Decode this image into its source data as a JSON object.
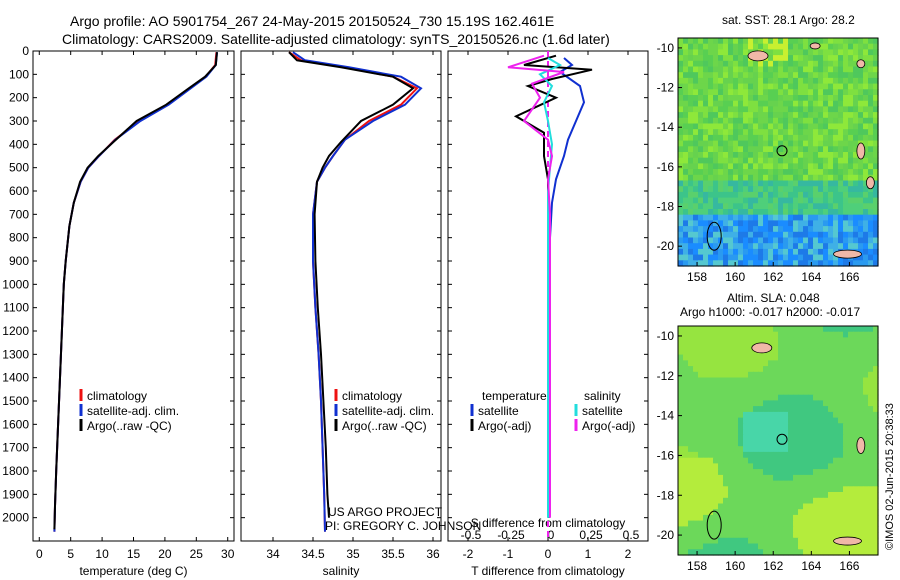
{
  "titles": {
    "line1": "Argo profile: AO 5901754_267 24-May-2015 20150524_730 15.19S 162.461E",
    "line2": "Climatology: CARS2009. Satellite-adjusted climatology: synTS_20150526.nc (1.6d later)",
    "sst": "sat. SST: 28.1  Argo: 28.2",
    "sla1": "Altim. SLA: 0.048",
    "sla2": "Argo h1000: -0.017 h2000: -0.017"
  },
  "credits": {
    "project": "US ARGO PROJECT",
    "pi": "PI: GREGORY C. JOHNSON",
    "imos": "©IMOS 02-Jun-2015 20:38:33"
  },
  "colors": {
    "climatology": "#ee1111",
    "satellite": "#1030d0",
    "argo": "#000000",
    "sal_satellite": "#22dddd",
    "sal_argo": "#ee22ee",
    "land": "#f0b8a8"
  },
  "chart_data": [
    {
      "type": "line",
      "panel": "temperature",
      "xlabel": "temperature (deg C)",
      "ylabel": "",
      "xlim": [
        -1,
        31
      ],
      "ylim": [
        2100,
        0
      ],
      "xticks": [
        0,
        5,
        10,
        15,
        20,
        25,
        30
      ],
      "yticks": [
        0,
        100,
        200,
        300,
        400,
        500,
        600,
        700,
        800,
        900,
        1000,
        1100,
        1200,
        1300,
        1400,
        1500,
        1600,
        1700,
        1800,
        1900,
        2000
      ],
      "legend": [
        "climatology",
        "satellite-adj. clim.",
        "Argo(..raw -QC)"
      ],
      "series": [
        {
          "name": "climatology",
          "color_key": "climatology",
          "points": [
            [
              28.2,
              5
            ],
            [
              28.0,
              60
            ],
            [
              26.5,
              110
            ],
            [
              24,
              160
            ],
            [
              20.5,
              230
            ],
            [
              16,
              300
            ],
            [
              12,
              380
            ],
            [
              9.5,
              450
            ],
            [
              7.8,
              500
            ],
            [
              6.6,
              560
            ],
            [
              5.5,
              650
            ],
            [
              4.8,
              750
            ],
            [
              4.2,
              900
            ],
            [
              3.9,
              1000
            ],
            [
              3.6,
              1200
            ],
            [
              3.3,
              1400
            ],
            [
              3.0,
              1600
            ],
            [
              2.7,
              1800
            ],
            [
              2.5,
              1950
            ],
            [
              2.4,
              2060
            ]
          ]
        },
        {
          "name": "satellite-adj. clim.",
          "color_key": "satellite",
          "points": [
            [
              28.3,
              5
            ],
            [
              28.1,
              60
            ],
            [
              26.6,
              110
            ],
            [
              24.1,
              160
            ],
            [
              20.6,
              230
            ],
            [
              16.1,
              300
            ],
            [
              12.1,
              380
            ],
            [
              9.5,
              450
            ],
            [
              7.8,
              500
            ],
            [
              6.6,
              560
            ],
            [
              5.5,
              650
            ],
            [
              4.8,
              750
            ],
            [
              4.2,
              900
            ],
            [
              3.9,
              1000
            ],
            [
              3.6,
              1200
            ],
            [
              3.3,
              1400
            ],
            [
              3.0,
              1600
            ],
            [
              2.7,
              1800
            ],
            [
              2.5,
              1950
            ],
            [
              2.4,
              2060
            ]
          ]
        },
        {
          "name": "Argo(..raw -QC)",
          "color_key": "argo",
          "points": [
            [
              28.3,
              5
            ],
            [
              28.1,
              60
            ],
            [
              26.4,
              110
            ],
            [
              23.8,
              160
            ],
            [
              20.2,
              230
            ],
            [
              15.5,
              300
            ],
            [
              11.8,
              390
            ],
            [
              9.4,
              450
            ],
            [
              7.7,
              500
            ],
            [
              6.5,
              560
            ],
            [
              5.5,
              650
            ],
            [
              4.8,
              750
            ],
            [
              4.2,
              900
            ],
            [
              3.9,
              1000
            ],
            [
              3.6,
              1200
            ],
            [
              3.3,
              1400
            ],
            [
              3.0,
              1600
            ],
            [
              2.7,
              1800
            ],
            [
              2.5,
              1950
            ],
            [
              2.4,
              2050
            ]
          ]
        }
      ]
    },
    {
      "type": "line",
      "panel": "salinity",
      "xlabel": "salinity",
      "xlim": [
        33.6,
        36.1
      ],
      "ylim": [
        2100,
        0
      ],
      "xticks": [
        34,
        34.5,
        35,
        35.5,
        36
      ],
      "legend": [
        "climatology",
        "satellite-adj. clim.",
        "Argo(..raw -QC)"
      ],
      "series": [
        {
          "name": "climatology",
          "color_key": "climatology",
          "points": [
            [
              34.2,
              5
            ],
            [
              34.35,
              40
            ],
            [
              34.9,
              70
            ],
            [
              35.5,
              110
            ],
            [
              35.8,
              160
            ],
            [
              35.6,
              230
            ],
            [
              35.2,
              300
            ],
            [
              34.9,
              380
            ],
            [
              34.75,
              450
            ],
            [
              34.65,
              500
            ],
            [
              34.55,
              560
            ],
            [
              34.5,
              700
            ],
            [
              34.5,
              900
            ],
            [
              34.53,
              1100
            ],
            [
              34.57,
              1300
            ],
            [
              34.6,
              1500
            ],
            [
              34.62,
              1700
            ],
            [
              34.64,
              1900
            ],
            [
              34.65,
              2060
            ]
          ]
        },
        {
          "name": "satellite-adj. clim.",
          "color_key": "satellite",
          "points": [
            [
              34.25,
              5
            ],
            [
              34.4,
              40
            ],
            [
              34.95,
              70
            ],
            [
              35.6,
              110
            ],
            [
              35.85,
              160
            ],
            [
              35.65,
              230
            ],
            [
              35.25,
              300
            ],
            [
              34.9,
              380
            ],
            [
              34.75,
              450
            ],
            [
              34.65,
              500
            ],
            [
              34.55,
              560
            ],
            [
              34.5,
              700
            ],
            [
              34.5,
              900
            ],
            [
              34.53,
              1100
            ],
            [
              34.57,
              1300
            ],
            [
              34.6,
              1500
            ],
            [
              34.62,
              1700
            ],
            [
              34.64,
              1900
            ],
            [
              34.65,
              2060
            ]
          ]
        },
        {
          "name": "Argo(..raw -QC)",
          "color_key": "argo",
          "points": [
            [
              34.2,
              5
            ],
            [
              34.3,
              40
            ],
            [
              34.85,
              70
            ],
            [
              35.5,
              110
            ],
            [
              35.75,
              160
            ],
            [
              35.5,
              230
            ],
            [
              35.1,
              300
            ],
            [
              34.85,
              390
            ],
            [
              34.7,
              450
            ],
            [
              34.62,
              500
            ],
            [
              34.55,
              560
            ],
            [
              34.52,
              700
            ],
            [
              34.53,
              900
            ],
            [
              34.56,
              1100
            ],
            [
              34.6,
              1300
            ],
            [
              34.63,
              1500
            ],
            [
              34.66,
              1700
            ],
            [
              34.68,
              1900
            ],
            [
              34.7,
              2000
            ]
          ]
        }
      ]
    },
    {
      "type": "line",
      "panel": "difference",
      "xlabel": "T difference from climatology",
      "xlabel2": "S difference from climatology",
      "xlim": [
        -2.5,
        2.5
      ],
      "ylim": [
        2100,
        0
      ],
      "xticks": [
        -2,
        -1,
        0,
        1,
        2
      ],
      "xticks_s": [
        -0.5,
        -0.25,
        0,
        0.25,
        0.5
      ],
      "legend_left": [
        "temperature",
        "satellite",
        "Argo(-adj)"
      ],
      "legend_right": [
        "salinity",
        "satellite",
        "Argo(-adj)"
      ],
      "series": [
        {
          "name": "temperature satellite",
          "color_key": "satellite",
          "points": [
            [
              0.4,
              30
            ],
            [
              0.6,
              60
            ],
            [
              0.3,
              90
            ],
            [
              0.8,
              150
            ],
            [
              0.9,
              220
            ],
            [
              0.7,
              300
            ],
            [
              0.5,
              380
            ],
            [
              0.4,
              450
            ],
            [
              0.2,
              550
            ],
            [
              0.1,
              650
            ],
            [
              0.05,
              800
            ],
            [
              0.02,
              1200
            ],
            [
              0.02,
              2000
            ]
          ]
        },
        {
          "name": "temperature Argo(-adj)",
          "color_key": "argo",
          "points": [
            [
              0.2,
              20
            ],
            [
              -0.6,
              60
            ],
            [
              1.1,
              80
            ],
            [
              0.1,
              120
            ],
            [
              -0.5,
              150
            ],
            [
              0.2,
              200
            ],
            [
              -0.8,
              280
            ],
            [
              -0.1,
              350
            ],
            [
              -0.1,
              450
            ],
            [
              0.0,
              550
            ],
            [
              0.0,
              700
            ],
            [
              0.02,
              1200
            ],
            [
              0.02,
              2000
            ]
          ]
        },
        {
          "name": "salinity satellite",
          "color_key": "sal_satellite",
          "points": [
            [
              0.0,
              30
            ],
            [
              0.3,
              60
            ],
            [
              -0.2,
              100
            ],
            [
              0.1,
              150
            ],
            [
              -0.1,
              220
            ],
            [
              0.0,
              300
            ],
            [
              0.1,
              400
            ],
            [
              0.05,
              500
            ],
            [
              0.0,
              600
            ],
            [
              0.0,
              800
            ],
            [
              0.0,
              2000
            ]
          ]
        },
        {
          "name": "salinity Argo(-adj)",
          "color_key": "sal_argo",
          "points": [
            [
              -0.1,
              20
            ],
            [
              -1.0,
              70
            ],
            [
              0.4,
              90
            ],
            [
              -0.4,
              140
            ],
            [
              -0.2,
              200
            ],
            [
              -0.6,
              300
            ],
            [
              0.0,
              380
            ],
            [
              0.1,
              450
            ],
            [
              0.0,
              550
            ],
            [
              0.05,
              700
            ],
            [
              0.05,
              1200
            ],
            [
              0.05,
              2000
            ]
          ]
        }
      ]
    },
    {
      "type": "heatmap",
      "panel": "sst_map",
      "title": "sat. SST: 28.1  Argo: 28.2",
      "xlim": [
        157,
        167.5
      ],
      "ylim": [
        -21,
        -9.5
      ],
      "xticks": [
        158,
        160,
        162,
        164,
        166
      ],
      "yticks": [
        -10,
        -12,
        -14,
        -16,
        -18,
        -20
      ],
      "argo_location": [
        162.461,
        -15.19
      ]
    },
    {
      "type": "heatmap",
      "panel": "sla_map",
      "title": "Altim. SLA: 0.048",
      "xlim": [
        157,
        167.5
      ],
      "ylim": [
        -21,
        -9.5
      ],
      "xticks": [
        158,
        160,
        162,
        164,
        166
      ],
      "yticks": [
        -10,
        -12,
        -14,
        -16,
        -18,
        -20
      ],
      "argo_location": [
        162.461,
        -15.19
      ]
    }
  ]
}
